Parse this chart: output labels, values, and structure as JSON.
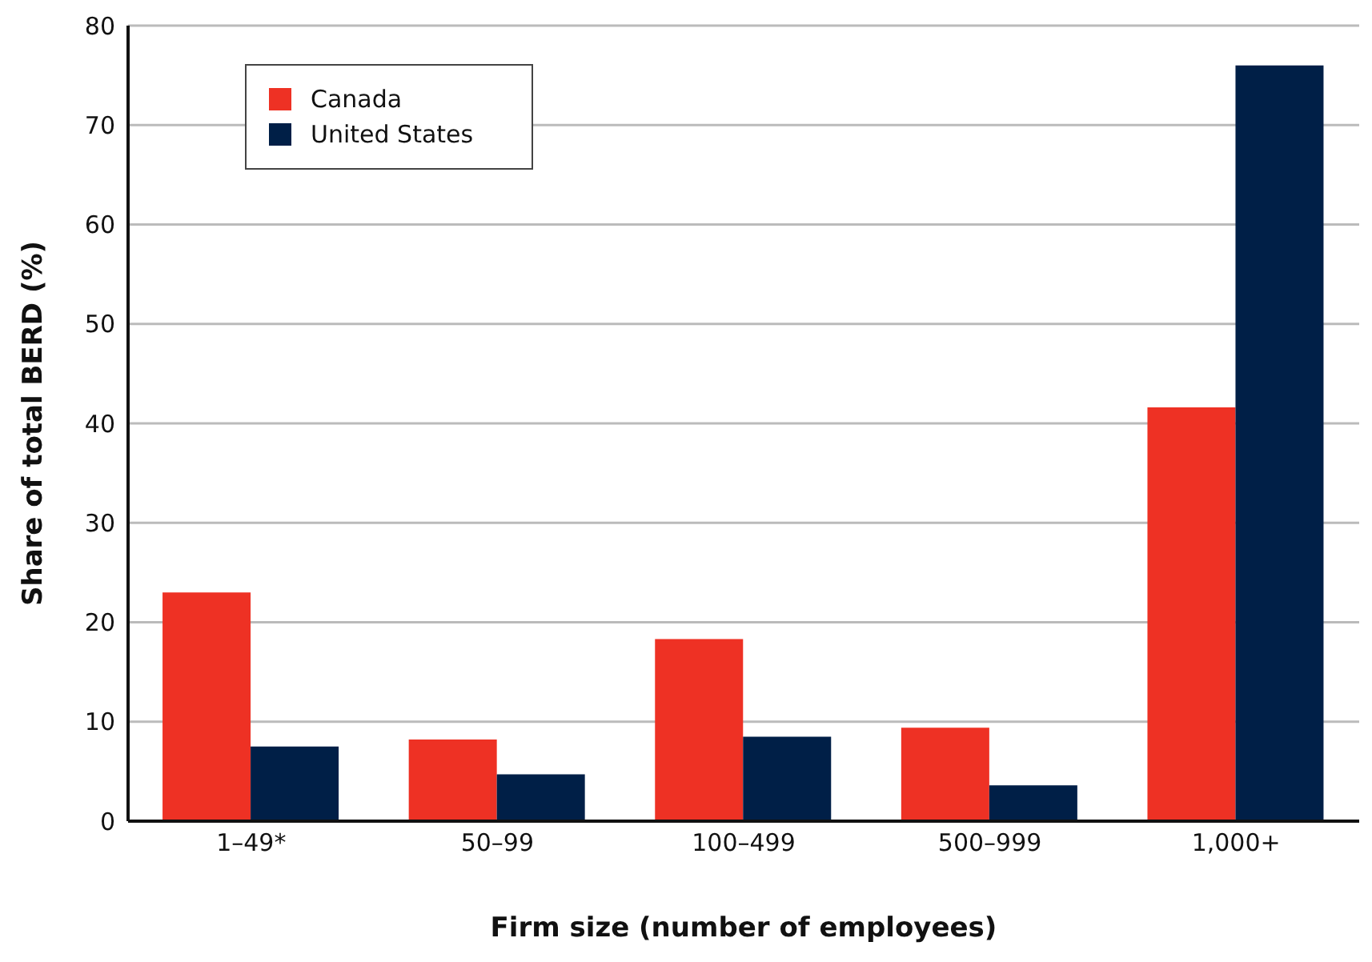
{
  "chart_data": {
    "type": "bar",
    "xlabel": "Firm size (number of employees)",
    "ylabel": "Share of total BERD (%)",
    "categories": [
      "1–49*",
      "50–99",
      "100–499",
      "500–999",
      "1,000+"
    ],
    "series": [
      {
        "name": "Canada",
        "color": "#ee3124",
        "values": [
          23.0,
          8.2,
          18.3,
          9.4,
          41.6
        ]
      },
      {
        "name": "United States",
        "color": "#001f47",
        "values": [
          7.5,
          4.7,
          8.5,
          3.6,
          76.0
        ]
      }
    ],
    "ylim": [
      0,
      80
    ],
    "yticks": [
      0,
      10,
      20,
      30,
      40,
      50,
      60,
      70,
      80
    ],
    "grid": "y",
    "legend": "top left"
  }
}
